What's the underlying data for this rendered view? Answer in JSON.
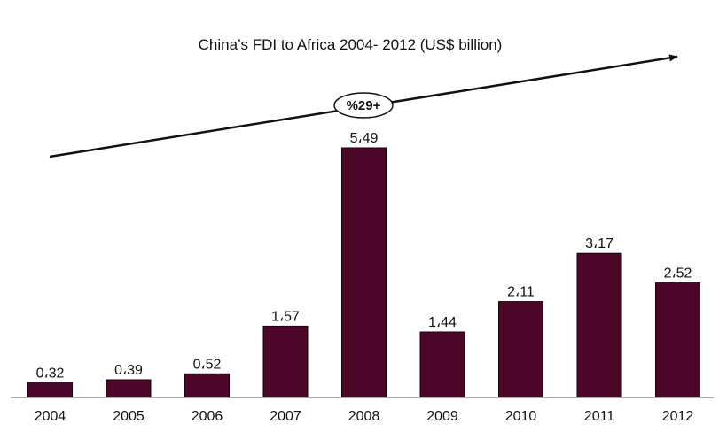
{
  "chart_data": {
    "type": "bar",
    "title": "China’s FDI to Africa 2004- 2012 (US$ billion)",
    "xlabel": "",
    "ylabel": "",
    "categories": [
      "2004",
      "2005",
      "2006",
      "2007",
      "2008",
      "2009",
      "2010",
      "2011",
      "2012"
    ],
    "values": [
      0.32,
      0.39,
      0.52,
      1.57,
      5.49,
      1.44,
      2.11,
      3.17,
      2.52
    ],
    "value_labels": [
      "0،32",
      "0،39",
      "0،52",
      "1،57",
      "5،49",
      "1،44",
      "2،11",
      "3،17",
      "2،52"
    ],
    "ylim": [
      0,
      5.49
    ],
    "grid": false,
    "legend": "none",
    "bar_color": "#4b0628",
    "annotation": {
      "type": "trend-arrow",
      "label": "%29+"
    }
  }
}
